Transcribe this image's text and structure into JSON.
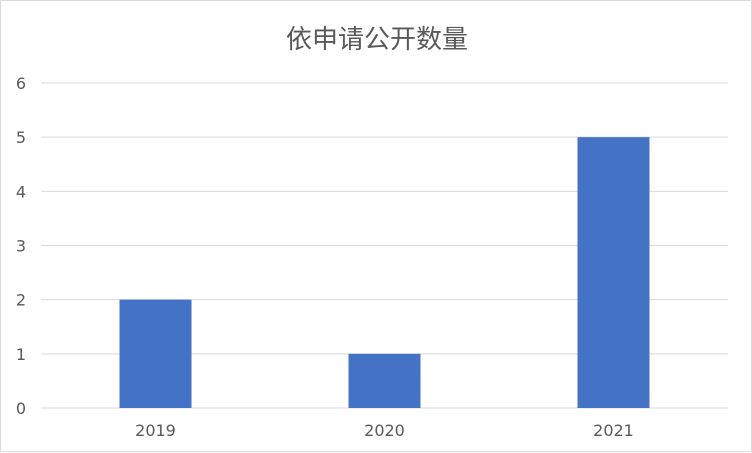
{
  "chart_data": {
    "type": "bar",
    "title": "依申请公开数量",
    "categories": [
      "2019",
      "2020",
      "2021"
    ],
    "values": [
      2,
      1,
      5
    ],
    "xlabel": "",
    "ylabel": "",
    "ylim": [
      0,
      6
    ],
    "yticks": [
      0,
      1,
      2,
      3,
      4,
      5,
      6
    ],
    "grid": true,
    "legend": "none",
    "bar_color": "#4472C4",
    "grid_color": "#d9d9d9"
  }
}
